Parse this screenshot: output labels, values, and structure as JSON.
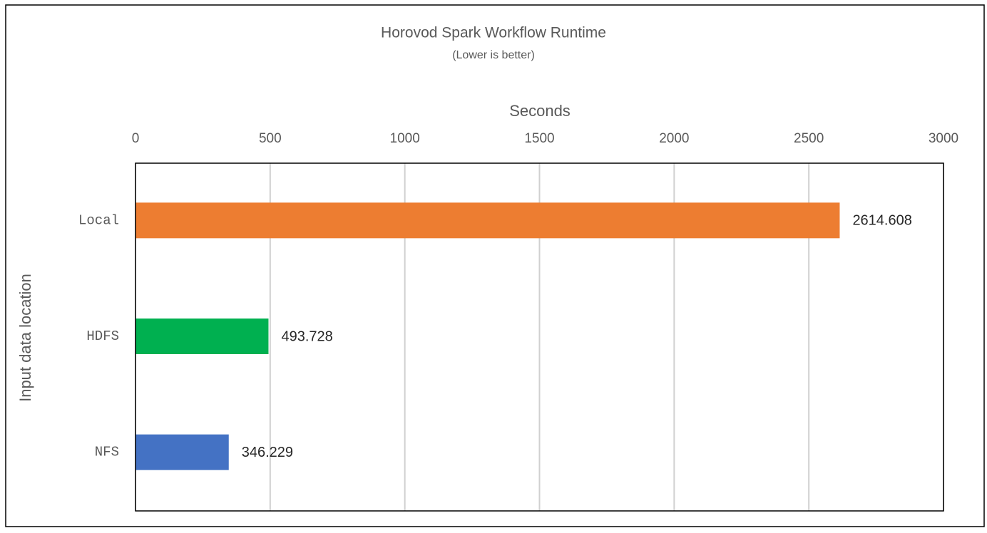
{
  "chart_data": {
    "type": "hbar",
    "title": "Horovod Spark Workflow Runtime",
    "subtitle": "(Lower is better)",
    "x_label": "Seconds",
    "y_label": "Input data location",
    "categories": [
      "Local",
      "HDFS",
      "NFS"
    ],
    "values": [
      2614.608,
      493.728,
      346.229
    ],
    "colors": [
      "#ed7d31",
      "#00b050",
      "#4472c4"
    ],
    "xlim": [
      0,
      3000
    ],
    "xticks": [
      0,
      500,
      1000,
      1500,
      2000,
      2500,
      3000
    ],
    "grid": true
  }
}
